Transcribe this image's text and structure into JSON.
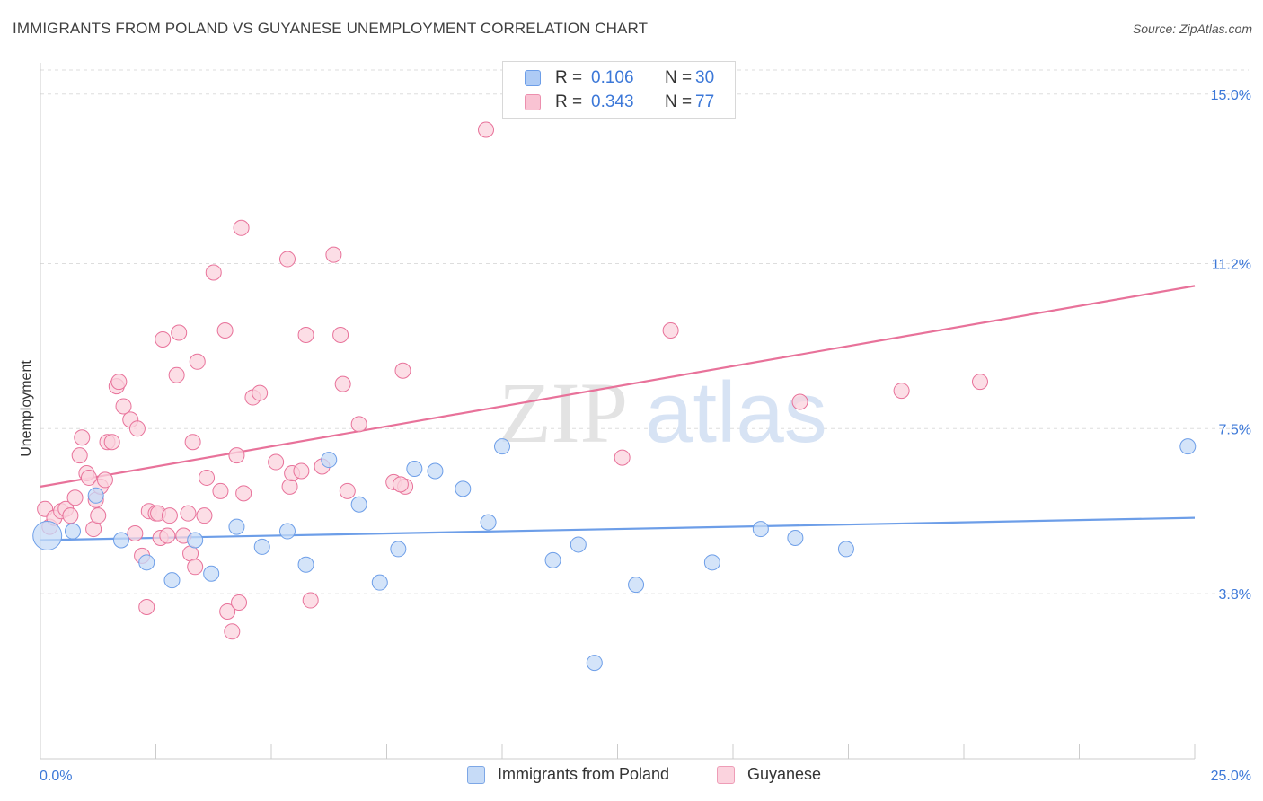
{
  "title": "IMMIGRANTS FROM POLAND VS GUYANESE UNEMPLOYMENT CORRELATION CHART",
  "source": "Source: ZipAtlas.com",
  "watermark": {
    "part1": "ZIP",
    "part2": "atlas"
  },
  "legend": {
    "rows": [
      {
        "r_label": "R =",
        "r_value": "0.106",
        "n_label": "N =",
        "n_value": "30",
        "color": "#aecbf5",
        "border": "#6d9ee8"
      },
      {
        "r_label": "R =",
        "r_value": "0.343",
        "n_label": "N =",
        "n_value": "77",
        "color": "#f9c3d3",
        "border": "#ec8fae"
      }
    ]
  },
  "bottom_legend": [
    {
      "label": "Immigrants from Poland",
      "color": "#c6dbf7",
      "border": "#7da7e6"
    },
    {
      "label": "Guyanese",
      "color": "#fbd3de",
      "border": "#ee9db7"
    }
  ],
  "chart_data": {
    "type": "scatter",
    "title": "IMMIGRANTS FROM POLAND VS GUYANESE UNEMPLOYMENT CORRELATION CHART",
    "xlabel": "",
    "ylabel": "Unemployment",
    "xlim": [
      0,
      25
    ],
    "ylim": [
      0.5,
      15.7
    ],
    "x_tick_labels": [
      {
        "value": 0,
        "label": "0.0%"
      },
      {
        "value": 25,
        "label": "25.0%"
      }
    ],
    "y_tick_labels": [
      {
        "value": 3.8,
        "label": "3.8%"
      },
      {
        "value": 7.5,
        "label": "7.5%"
      },
      {
        "value": 11.2,
        "label": "11.2%"
      },
      {
        "value": 15.0,
        "label": "15.0%"
      }
    ],
    "grid": true,
    "legend_position": "top-center",
    "series": [
      {
        "name": "Immigrants from Poland",
        "color": "#6d9ee8",
        "fill": "#c6dbf7",
        "trend": {
          "x": [
            0,
            25
          ],
          "y": [
            5.0,
            5.5
          ]
        },
        "points": [
          [
            0.15,
            5.1
          ],
          [
            0.7,
            5.2
          ],
          [
            1.2,
            6.0
          ],
          [
            1.75,
            5.0
          ],
          [
            2.3,
            4.5
          ],
          [
            2.85,
            4.1
          ],
          [
            3.35,
            5.0
          ],
          [
            3.7,
            4.25
          ],
          [
            4.25,
            5.3
          ],
          [
            4.8,
            4.85
          ],
          [
            5.35,
            5.2
          ],
          [
            5.75,
            4.45
          ],
          [
            6.25,
            6.8
          ],
          [
            6.9,
            5.8
          ],
          [
            7.35,
            4.05
          ],
          [
            7.75,
            4.8
          ],
          [
            8.1,
            6.6
          ],
          [
            8.55,
            6.55
          ],
          [
            9.15,
            6.15
          ],
          [
            9.7,
            5.4
          ],
          [
            10.0,
            7.1
          ],
          [
            11.1,
            4.55
          ],
          [
            11.65,
            4.9
          ],
          [
            12.9,
            4.0
          ],
          [
            14.55,
            4.5
          ],
          [
            15.6,
            5.25
          ],
          [
            16.35,
            5.05
          ],
          [
            17.45,
            4.8
          ],
          [
            12.0,
            2.25
          ],
          [
            24.85,
            7.1
          ]
        ]
      },
      {
        "name": "Guyanese",
        "color": "#e8729a",
        "fill": "#fbd3de",
        "trend": {
          "x": [
            0,
            25
          ],
          "y": [
            6.2,
            10.7
          ]
        },
        "points": [
          [
            0.1,
            5.7
          ],
          [
            0.2,
            5.3
          ],
          [
            0.3,
            5.5
          ],
          [
            0.45,
            5.65
          ],
          [
            0.55,
            5.7
          ],
          [
            0.65,
            5.55
          ],
          [
            0.75,
            5.95
          ],
          [
            0.85,
            6.9
          ],
          [
            0.9,
            7.3
          ],
          [
            1.0,
            6.5
          ],
          [
            1.05,
            6.4
          ],
          [
            1.15,
            5.25
          ],
          [
            1.2,
            5.9
          ],
          [
            1.25,
            5.55
          ],
          [
            1.3,
            6.2
          ],
          [
            1.4,
            6.35
          ],
          [
            1.45,
            7.2
          ],
          [
            1.55,
            7.2
          ],
          [
            1.65,
            8.45
          ],
          [
            1.7,
            8.55
          ],
          [
            1.8,
            8.0
          ],
          [
            1.95,
            7.7
          ],
          [
            2.05,
            5.15
          ],
          [
            2.1,
            7.5
          ],
          [
            2.2,
            4.65
          ],
          [
            2.3,
            3.5
          ],
          [
            2.35,
            5.65
          ],
          [
            2.5,
            5.6
          ],
          [
            2.55,
            5.6
          ],
          [
            2.6,
            5.05
          ],
          [
            2.65,
            9.5
          ],
          [
            2.75,
            5.1
          ],
          [
            2.8,
            5.55
          ],
          [
            2.95,
            8.7
          ],
          [
            3.0,
            9.65
          ],
          [
            3.1,
            5.1
          ],
          [
            3.2,
            5.6
          ],
          [
            3.25,
            4.7
          ],
          [
            3.3,
            7.2
          ],
          [
            3.35,
            4.4
          ],
          [
            3.4,
            9.0
          ],
          [
            3.55,
            5.55
          ],
          [
            3.6,
            6.4
          ],
          [
            3.75,
            11.0
          ],
          [
            3.9,
            6.1
          ],
          [
            4.0,
            9.7
          ],
          [
            4.05,
            3.4
          ],
          [
            4.15,
            2.95
          ],
          [
            4.25,
            6.9
          ],
          [
            4.3,
            3.6
          ],
          [
            4.4,
            6.05
          ],
          [
            4.35,
            12.0
          ],
          [
            4.6,
            8.2
          ],
          [
            4.75,
            8.3
          ],
          [
            5.1,
            6.75
          ],
          [
            5.35,
            11.3
          ],
          [
            5.4,
            6.2
          ],
          [
            5.45,
            6.5
          ],
          [
            5.65,
            6.55
          ],
          [
            5.75,
            9.6
          ],
          [
            5.85,
            3.65
          ],
          [
            6.1,
            6.65
          ],
          [
            6.35,
            11.4
          ],
          [
            6.5,
            9.6
          ],
          [
            6.55,
            8.5
          ],
          [
            6.65,
            6.1
          ],
          [
            6.9,
            7.6
          ],
          [
            7.65,
            6.3
          ],
          [
            7.9,
            6.2
          ],
          [
            7.85,
            8.8
          ],
          [
            9.65,
            14.2
          ],
          [
            12.6,
            6.85
          ],
          [
            13.65,
            9.7
          ],
          [
            16.45,
            8.1
          ],
          [
            18.65,
            8.35
          ],
          [
            20.35,
            8.55
          ],
          [
            7.8,
            6.25
          ]
        ]
      }
    ]
  }
}
